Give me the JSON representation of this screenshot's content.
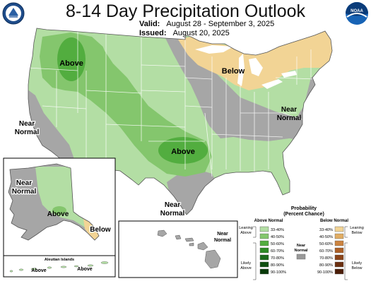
{
  "header": {
    "title": "8-14 Day Precipitation Outlook",
    "valid_label": "Valid:",
    "valid_dates": "August 28 - September 3, 2025",
    "issued_label": "Issued:",
    "issued_date": "August 20, 2025"
  },
  "logos": {
    "left": "noaa-seal-logo",
    "right": "noaa-logo"
  },
  "map_labels": {
    "above_northwest": "Above",
    "above_plains": "Above",
    "below_northeast": "Below",
    "near_normal_west": [
      "Near",
      "Normal"
    ],
    "near_normal_east": [
      "Near",
      "Normal"
    ],
    "near_normal_texas": [
      "Near",
      "Normal"
    ],
    "alaska_near_normal": [
      "Near",
      "Normal"
    ],
    "alaska_above": "Above",
    "alaska_below": "Below",
    "aleutian_title": "Aleutian Islands",
    "aleutian_above_1": "Above",
    "aleutian_above_2": "Above",
    "hawaii_near_normal": [
      "Near",
      "Normal"
    ]
  },
  "legend": {
    "title": [
      "Probability",
      "(Percent Chance)"
    ],
    "above_header": "Above Normal",
    "below_header": "Below Normal",
    "near_header": [
      "Near",
      "Normal"
    ],
    "leaning_above": [
      "Leaning",
      "Above"
    ],
    "likely_above": [
      "Likely",
      "Above"
    ],
    "leaning_below": [
      "Leaning",
      "Below"
    ],
    "likely_below": [
      "Likely",
      "Below"
    ],
    "ranges": [
      "33-40%",
      "40-50%",
      "50-60%",
      "60-70%",
      "70-80%",
      "80-90%",
      "90-100%"
    ],
    "above_colors": [
      "#b3dea4",
      "#84c66d",
      "#52ad3f",
      "#2d8a25",
      "#1b6b1b",
      "#0f4f10",
      "#083a09"
    ],
    "below_colors": [
      "#f2d495",
      "#e1ad64",
      "#cc8440",
      "#ad6027",
      "#8b4419",
      "#6b2f10",
      "#4b1e08"
    ],
    "near_color": "#999999"
  },
  "colors": {
    "above_33_40": "#b3dea4",
    "above_40_50": "#84c66d",
    "above_50_60": "#52ad3f",
    "below_33_40": "#f2d495",
    "near_normal": "#a6a6a6"
  }
}
